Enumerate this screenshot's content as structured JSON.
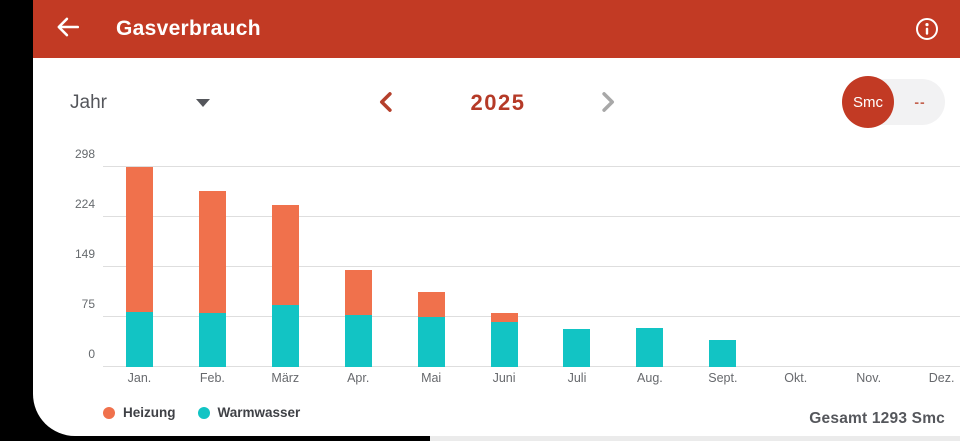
{
  "header": {
    "title": "Gasverbrauch"
  },
  "controls": {
    "period_select": {
      "value": "Jahr"
    },
    "year_nav": {
      "year": "2025"
    },
    "unit_toggle": {
      "active": "Smc",
      "inactive": "--"
    }
  },
  "chart_data": {
    "type": "bar",
    "stacked": true,
    "title": "",
    "xlabel": "",
    "ylabel": "",
    "ylim": [
      0,
      298
    ],
    "yticks": [
      0,
      75,
      149,
      224,
      298
    ],
    "grid": true,
    "legend_position": "bottom-left",
    "categories": [
      "Jan.",
      "Feb.",
      "März",
      "Apr.",
      "Mai",
      "Juni",
      "Juli",
      "Aug.",
      "Sept.",
      "Okt.",
      "Nov.",
      "Dez."
    ],
    "series": [
      {
        "name": "Warmwasser",
        "color": "#12c4c4",
        "values": [
          82,
          80,
          93,
          78,
          74,
          67,
          56,
          58,
          40,
          0,
          0,
          0
        ]
      },
      {
        "name": "Heizung",
        "color": "#f0714c",
        "values": [
          216,
          182,
          149,
          66,
          38,
          14,
          0,
          0,
          0,
          0,
          0,
          0
        ]
      }
    ],
    "totals": [
      298,
      262,
      242,
      144,
      112,
      81,
      56,
      58,
      40,
      0,
      0,
      0
    ]
  },
  "legend": [
    {
      "label": "Heizung",
      "color": "#f0714c"
    },
    {
      "label": "Warmwasser",
      "color": "#12c4c4"
    }
  ],
  "footer": {
    "total_label": "Gesamt 1293 Smc"
  },
  "colors": {
    "header_bg": "#c23a24",
    "accent_red": "#b53a27",
    "heizung": "#f0714c",
    "warmwasser": "#12c4c4",
    "gridline": "#dedede"
  }
}
